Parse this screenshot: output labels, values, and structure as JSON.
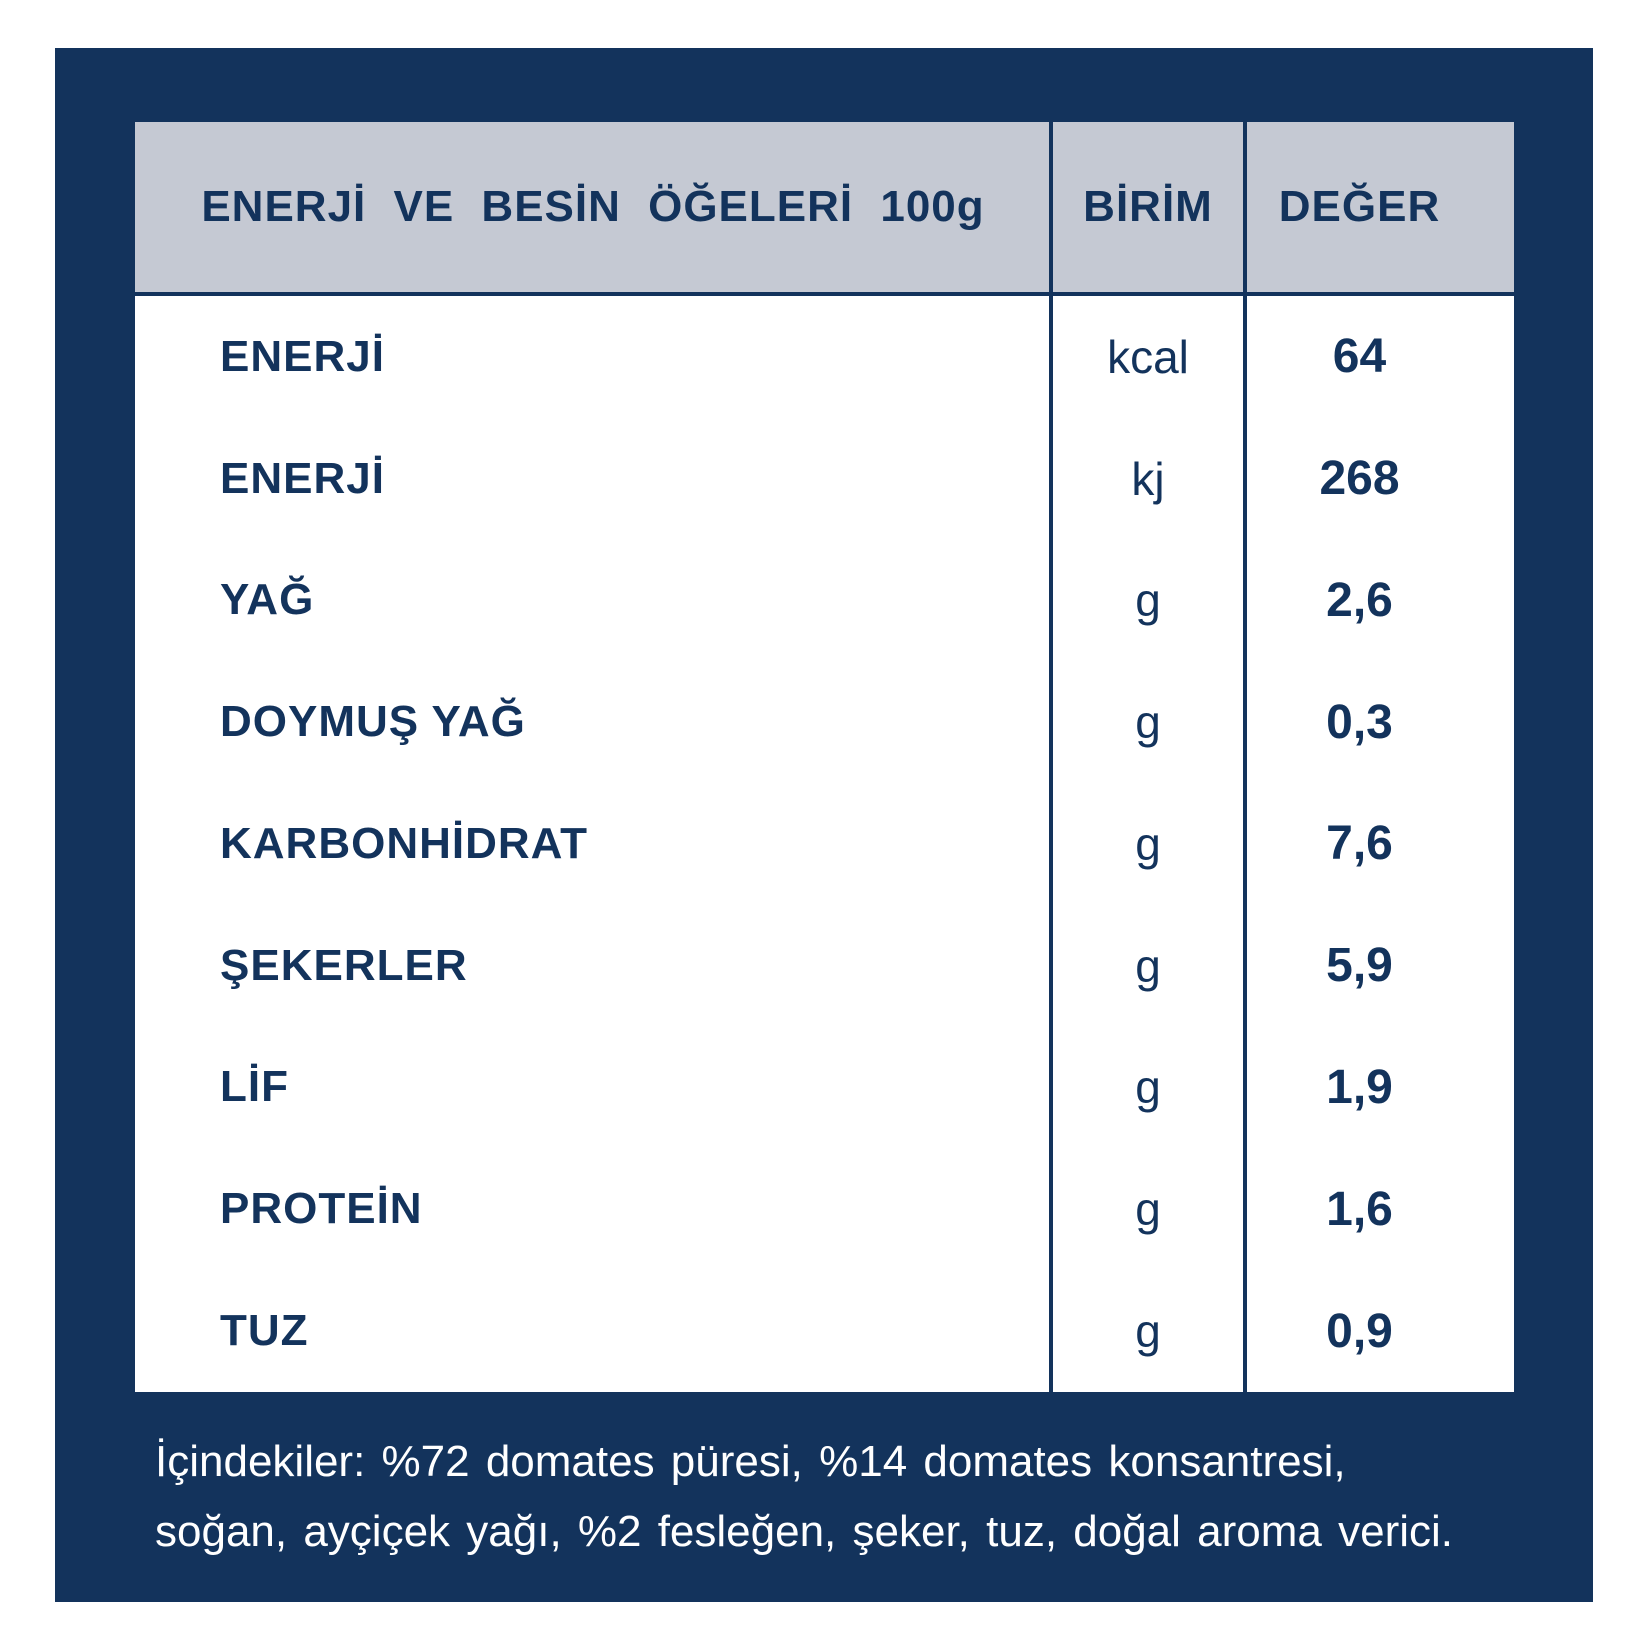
{
  "label_type": "nutrition-facts",
  "colors": {
    "navy": "#13335c",
    "header_gray": "#c5c9d3",
    "background": "#ffffff",
    "text_on_navy": "#ffffff"
  },
  "table": {
    "header": {
      "nutrients_col": "ENERJİ VE BESİN ÖĞELERİ 100g",
      "unit_col": "BİRİM",
      "value_col": "DEĞER"
    },
    "rows": [
      {
        "label": "ENERJİ",
        "unit": "kcal",
        "value": "64"
      },
      {
        "label": "ENERJİ",
        "unit": "kj",
        "value": "268"
      },
      {
        "label": "YAĞ",
        "unit": "g",
        "value": "2,6"
      },
      {
        "label": "DOYMUŞ YAĞ",
        "unit": "g",
        "value": "0,3"
      },
      {
        "label": "KARBONHİDRAT",
        "unit": "g",
        "value": "7,6"
      },
      {
        "label": "ŞEKERLER",
        "unit": "g",
        "value": "5,9"
      },
      {
        "label": "LİF",
        "unit": "g",
        "value": "1,9"
      },
      {
        "label": "PROTEİN",
        "unit": "g",
        "value": "1,6"
      },
      {
        "label": "TUZ",
        "unit": "g",
        "value": "0,9"
      }
    ]
  },
  "ingredients": {
    "line1": "İçindekiler: %72 domates püresi, %14 domates konsantresi,",
    "line2": "soğan, ayçiçek yağı, %2 fesleğen, şeker, tuz, doğal aroma verici."
  }
}
